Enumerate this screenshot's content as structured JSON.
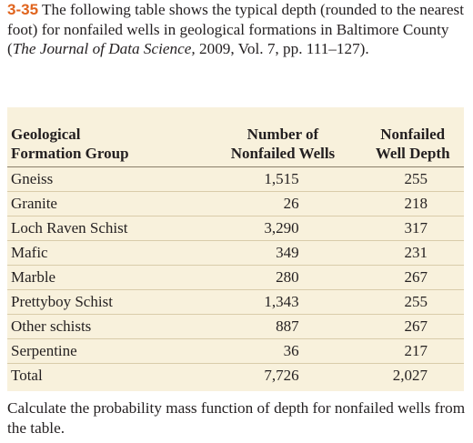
{
  "problem": {
    "number": "3-35",
    "intro_before": "The following table shows the typical depth (rounded to the nearest foot) for nonfailed wells in geological formations in Baltimore County (",
    "journal": "The Journal of Data Science,",
    "intro_after": " 2009, Vol. 7, pp. 111–127).",
    "closing": "Calculate the probability mass function of depth for nonfailed wells from the table."
  },
  "table": {
    "header": [
      [
        "Geological",
        "Formation Group"
      ],
      [
        "Number of",
        "Nonfailed Wells"
      ],
      [
        "Nonfailed",
        "Well Depth"
      ]
    ],
    "rows": [
      [
        "Gneiss",
        "1,515",
        255
      ],
      [
        "Granite",
        26,
        218
      ],
      [
        "Loch Raven Schist",
        "3,290",
        317
      ],
      [
        "Mafic",
        349,
        231
      ],
      [
        "Marble",
        280,
        267
      ],
      [
        "Prettyboy Schist",
        "1,343",
        255
      ],
      [
        "Other schists",
        887,
        267
      ],
      [
        "Serpentine",
        36,
        217
      ],
      [
        "Total",
        "7,726",
        "2,027"
      ]
    ]
  }
}
